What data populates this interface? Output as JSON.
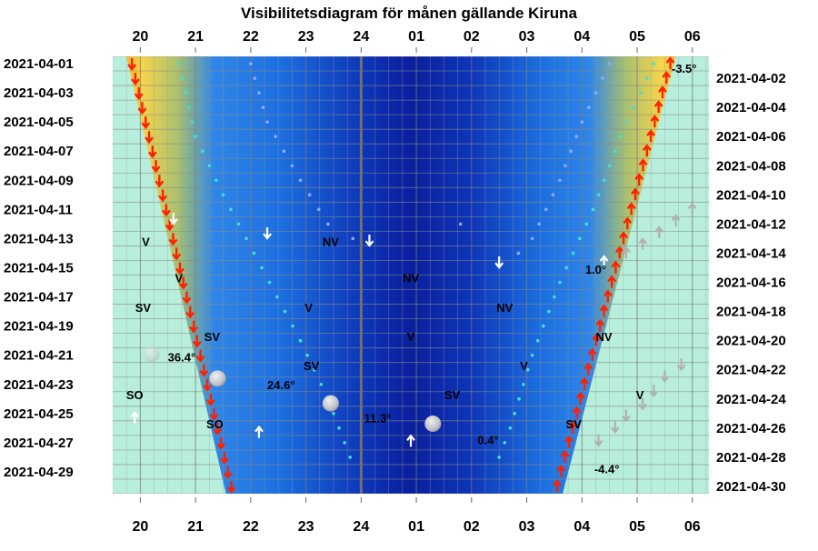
{
  "chart_data": {
    "type": "heatmap",
    "title": "Visibilitetsdiagram för månen gällande Kiruna",
    "hour_labels": [
      "20",
      "21",
      "22",
      "23",
      "24",
      "01",
      "02",
      "03",
      "04",
      "05",
      "06"
    ],
    "dates_left": [
      "2021-04-01",
      "2021-04-03",
      "2021-04-05",
      "2021-04-07",
      "2021-04-09",
      "2021-04-11",
      "2021-04-13",
      "2021-04-15",
      "2021-04-17",
      "2021-04-19",
      "2021-04-21",
      "2021-04-23",
      "2021-04-25",
      "2021-04-27",
      "2021-04-29"
    ],
    "dates_right": [
      "2021-04-02",
      "2021-04-04",
      "2021-04-06",
      "2021-04-08",
      "2021-04-10",
      "2021-04-12",
      "2021-04-14",
      "2021-04-16",
      "2021-04-18",
      "2021-04-20",
      "2021-04-22",
      "2021-04-24",
      "2021-04-26",
      "2021-04-28",
      "2021-04-30"
    ],
    "x_range_hours": [
      19.5,
      30.3
    ],
    "days": 30,
    "sunset": {
      "first": 19.75,
      "last": 21.55
    },
    "sunrise": {
      "first": 5.7,
      "last": 3.65
    },
    "direction_labels": [
      {
        "text": "V",
        "day": 13.2,
        "hour": 20.1
      },
      {
        "text": "NV",
        "day": 13.2,
        "hour": 23.45
      },
      {
        "text": "V",
        "day": 15.7,
        "hour": 20.7
      },
      {
        "text": "NV",
        "day": 15.7,
        "hour": 24.9
      },
      {
        "text": "SV",
        "day": 17.7,
        "hour": 20.05
      },
      {
        "text": "V",
        "day": 17.7,
        "hour": 23.05
      },
      {
        "text": "NV",
        "day": 17.7,
        "hour": 26.6
      },
      {
        "text": "SV",
        "day": 19.7,
        "hour": 21.3
      },
      {
        "text": "V",
        "day": 19.7,
        "hour": 24.9
      },
      {
        "text": "NV",
        "day": 19.7,
        "hour": 28.4
      },
      {
        "text": "SV",
        "day": 21.7,
        "hour": 23.1
      },
      {
        "text": "V",
        "day": 21.7,
        "hour": 26.95
      },
      {
        "text": "SO",
        "day": 23.7,
        "hour": 19.9
      },
      {
        "text": "SV",
        "day": 23.7,
        "hour": 25.65
      },
      {
        "text": "V",
        "day": 23.7,
        "hour": 29.05
      },
      {
        "text": "SO",
        "day": 25.7,
        "hour": 21.35
      },
      {
        "text": "SV",
        "day": 25.7,
        "hour": 27.85
      }
    ],
    "altitude_labels": [
      {
        "text": "-3.5°",
        "day": 1.3,
        "hour": 29.85
      },
      {
        "text": "1.0°",
        "day": 15.1,
        "hour": 28.25
      },
      {
        "text": "36.4°",
        "day": 21.1,
        "hour": 20.75
      },
      {
        "text": "24.6°",
        "day": 23.0,
        "hour": 22.55
      },
      {
        "text": "11.3°",
        "day": 25.3,
        "hour": 24.3
      },
      {
        "text": "0.4°",
        "day": 26.8,
        "hour": 26.3
      },
      {
        "text": "-4.4°",
        "day": 28.8,
        "hour": 28.45
      }
    ],
    "moon_phases": [
      {
        "day": 20.9,
        "hour": 20.2
      },
      {
        "day": 22.6,
        "hour": 21.4
      },
      {
        "day": 24.3,
        "hour": 23.45
      },
      {
        "day": 25.7,
        "hour": 25.3
      }
    ],
    "white_arrows": [
      {
        "day": 11.6,
        "hour": 20.6,
        "dir": "down"
      },
      {
        "day": 12.6,
        "hour": 22.3,
        "dir": "down"
      },
      {
        "day": 13.1,
        "hour": 24.15,
        "dir": "down"
      },
      {
        "day": 14.6,
        "hour": 26.5,
        "dir": "down"
      },
      {
        "day": 14.6,
        "hour": 28.4,
        "dir": "up"
      },
      {
        "day": 25.3,
        "hour": 19.9,
        "dir": "up"
      },
      {
        "day": 26.3,
        "hour": 22.15,
        "dir": "up"
      },
      {
        "day": 26.9,
        "hour": 24.9,
        "dir": "up"
      }
    ],
    "grey_arrows": [
      {
        "day": 11.0,
        "hour": 30.0,
        "dir": "up"
      },
      {
        "day": 11.8,
        "hour": 29.7,
        "dir": "up"
      },
      {
        "day": 12.6,
        "hour": 29.4,
        "dir": "up"
      },
      {
        "day": 13.4,
        "hour": 29.1,
        "dir": "up"
      },
      {
        "day": 14.0,
        "hour": 28.8,
        "dir": "up"
      },
      {
        "day": 21.6,
        "hour": 29.8,
        "dir": "down"
      },
      {
        "day": 22.4,
        "hour": 29.5,
        "dir": "down"
      },
      {
        "day": 23.4,
        "hour": 29.3,
        "dir": "down"
      },
      {
        "day": 24.3,
        "hour": 29.1,
        "dir": "down"
      },
      {
        "day": 25.1,
        "hour": 28.8,
        "dir": "down"
      },
      {
        "day": 25.9,
        "hour": 28.6,
        "dir": "down"
      },
      {
        "day": 26.8,
        "hour": 28.3,
        "dir": "down"
      }
    ],
    "colors": {
      "daylight": "#b8eedc",
      "twilight_orange": "#f5a000",
      "twilight_yellow": "#f6d54a",
      "dusk_green": "#a8c070",
      "night_blue": "#1c6fe0",
      "deep_night": "#0a1f9c",
      "sunset_arrow": "#ff2000",
      "midnight_line": "#707070"
    }
  }
}
